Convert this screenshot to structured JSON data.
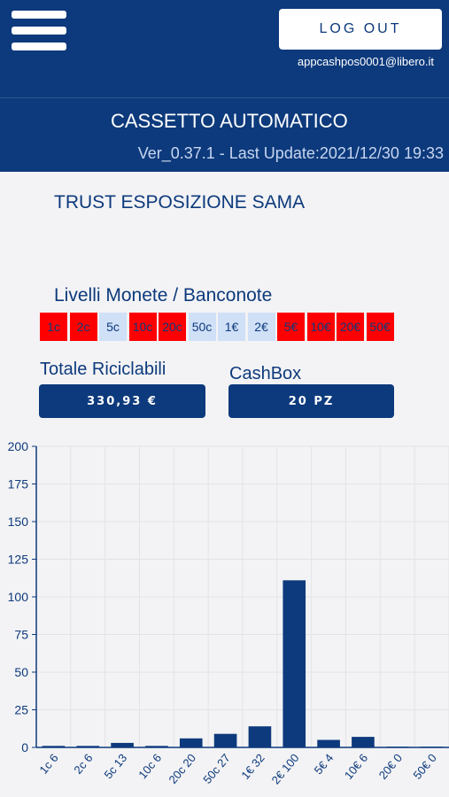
{
  "header": {
    "logout_label": "LOG OUT",
    "email": "appcashpos0001@libero.it",
    "title": "CASSETTO AUTOMATICO",
    "version": "Ver_0.37.1 - Last Update:2021/12/30 19:33"
  },
  "main": {
    "trust_title": "TRUST ESPOSIZIONE SAMA",
    "levels_title": "Livelli Monete  / Banconote",
    "denominations": [
      {
        "label": "1c",
        "status": "red"
      },
      {
        "label": "2c",
        "status": "red"
      },
      {
        "label": "5c",
        "status": "light"
      },
      {
        "label": "10c",
        "status": "red"
      },
      {
        "label": "20c",
        "status": "red"
      },
      {
        "label": "50c",
        "status": "light"
      },
      {
        "label": "1€",
        "status": "light"
      },
      {
        "label": "2€",
        "status": "light"
      },
      {
        "label": "5€",
        "status": "red"
      },
      {
        "label": "10€",
        "status": "red"
      },
      {
        "label": "20€",
        "status": "red"
      },
      {
        "label": "50€",
        "status": "red"
      }
    ],
    "totale_label": "Totale Riciclabili",
    "totale_value": "330,93 €",
    "cashbox_label": "CashBox",
    "cashbox_value": "20 PZ"
  },
  "colors": {
    "primary": "#0d3a7c",
    "red": "#ff0000",
    "light": "#cfe0f7",
    "background": "#f3f3f5"
  },
  "icons": {
    "menu": "hamburger-menu-icon"
  },
  "chart_data": {
    "type": "bar",
    "categories": [
      "1c",
      "2c",
      "5c",
      "10c",
      "20c",
      "50c",
      "1€",
      "2€",
      "5€",
      "10€",
      "20€",
      "50€"
    ],
    "x_tick_labels": [
      "1c 6",
      "2c 6",
      "5c 13",
      "10c 6",
      "20c 20",
      "50c 27",
      "1€ 32",
      "2€ 100",
      "5€ 4",
      "10€ 6",
      "20€ 0",
      "50€ 0"
    ],
    "values": [
      1,
      1,
      3,
      1,
      6,
      9,
      14,
      111,
      5,
      7,
      0.5,
      0.5
    ],
    "yticks": [
      0,
      25,
      50,
      75,
      100,
      125,
      150,
      175,
      200
    ],
    "ylim": [
      0,
      200
    ],
    "grid": true,
    "bar_color": "#0d3a7c"
  }
}
